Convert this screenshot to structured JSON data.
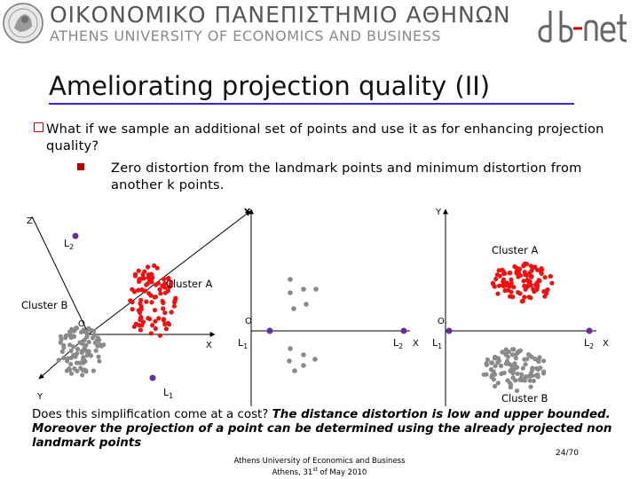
{
  "header": {
    "university_greek": "ΟΙΚΟΝΟΜΙΚΟ ΠΑΝΕΠΙΣΤΗΜΙΟ ΑΘΗΝΩΝ",
    "university_english": "ATHENS UNIVERSITY OF ECONOMICS AND BUSINESS",
    "logo_right_text": "db-net"
  },
  "slide": {
    "title": "Ameliorating projection quality (II)",
    "bullet1": "What if we sample an additional set of points and use it as for enhancing projection quality?",
    "bullet2": "Zero distortion from the landmark points and minimum distortion from another k points."
  },
  "diagram": {
    "left": {
      "axis_z": "Z",
      "axis_y_up": "Y",
      "axis_x": "X",
      "axis_y_down": "Y",
      "origin": "O",
      "landmark_l2": "L",
      "landmark_l2_sub": "2",
      "landmark_l1": "L",
      "landmark_l1_sub": "1",
      "cluster_a": "Cluster A",
      "cluster_b": "Cluster B"
    },
    "middle": {
      "axis_y": "Y",
      "origin": "O",
      "landmark_l1": "L",
      "landmark_l1_sub": "1",
      "landmark_l2": "L",
      "landmark_l2_sub": "2",
      "axis_x": "X"
    },
    "right": {
      "axis_y": "Y",
      "origin": "O",
      "landmark_l1": "L",
      "landmark_l1_sub": "1",
      "landmark_l2": "L",
      "landmark_l2_sub": "2",
      "axis_x": "X",
      "cluster_a": "Cluster A",
      "cluster_b": "Cluster B"
    },
    "colors": {
      "cluster_a": "#ee1111",
      "cluster_b": "#8a8a8a",
      "landmark": "#6a2d99"
    }
  },
  "conclusion": {
    "plain": "Does this simplification come at a cost? ",
    "emphasis": "The distance distortion is low and upper bounded. Moreover the projection of a point can be determined using the already projected non landmark points"
  },
  "footer": {
    "line1": "Athens University of Economics and Business",
    "line2_prefix": "Athens, 31",
    "line2_sup": "st",
    "line2_suffix": " of May 2010",
    "page": "24/70"
  }
}
